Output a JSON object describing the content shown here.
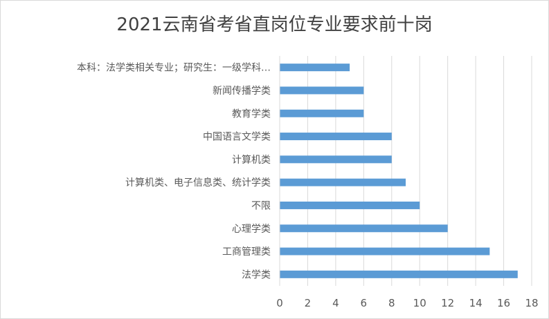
{
  "chart_data": {
    "type": "bar",
    "orientation": "horizontal",
    "title": "2021云南省考省直岗位专业要求前十岗",
    "categories": [
      "本科：法学类相关专业；研究生：一级学科…",
      "新闻传播学类",
      "教育学类",
      "中国语言文学类",
      "计算机类",
      "计算机类、电子信息类、统计学类",
      "不限",
      "心理学类",
      "工商管理类",
      "法学类"
    ],
    "values": [
      5,
      6,
      6,
      8,
      8,
      9,
      10,
      12,
      15,
      17
    ],
    "xlim": [
      0,
      18
    ],
    "xticks": [
      "0",
      "2",
      "4",
      "6",
      "8",
      "10",
      "12",
      "14",
      "16",
      "18"
    ],
    "grid": true,
    "legend": "none",
    "bar_color": "#5b9bd5",
    "grid_color": "#d9d9d9",
    "text_color": "#595959"
  }
}
